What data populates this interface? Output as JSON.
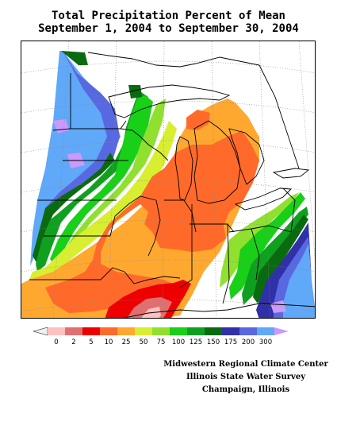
{
  "title": {
    "line1": "Total Precipitation Percent of Mean",
    "line2": "September 1, 2004 to September 30, 2004"
  },
  "legend": {
    "colors": [
      "#f0f0f0",
      "#ffc0c0",
      "#e07070",
      "#ee0000",
      "#ff6a2a",
      "#ffa830",
      "#d8ee30",
      "#90e030",
      "#18d018",
      "#10a020",
      "#0a6a10",
      "#3030a8",
      "#5868e0",
      "#60a8f8",
      "#cc99ff"
    ],
    "labels": [
      "0",
      "2",
      "5",
      "10",
      "25",
      "50",
      "75",
      "100",
      "125",
      "150",
      "175",
      "200",
      "300"
    ]
  },
  "credits": [
    "Midwestern Regional Climate Center",
    "Illinois State Water Survey",
    "Champaign, Illinois"
  ],
  "map_colors": {
    "background": "#ffffff",
    "light_blue": "#60a8f8",
    "mid_blue": "#5868e0",
    "dark_blue": "#3030a8",
    "dark_green": "#0a6a10",
    "green": "#10a020",
    "bright_green": "#18d018",
    "light_green": "#90e030",
    "yellow_green": "#d8ee30",
    "orange": "#ffa830",
    "red_orange": "#ff6a2a",
    "red": "#ee0000",
    "pink": "#e07070",
    "light_pink": "#ffc0c0",
    "purple": "#cc99ff"
  }
}
